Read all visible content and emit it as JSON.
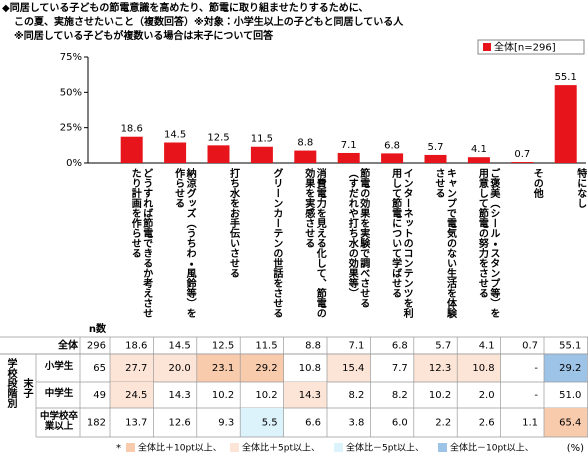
{
  "header": {
    "title_lines": [
      "◆同居している子どもの節電意識を高めたり、節電に取り組ませたりするために、",
      "この夏、実施させたいこと（複数回答）※対象：小学生以上の子どもと同居している人",
      "※同居している子どもが複数いる場合は末子について回答"
    ]
  },
  "chart_data": {
    "type": "bar",
    "legend": "全体[n=296]",
    "legend_position": "top-right",
    "color": "#e8141c",
    "categories": [
      "どうすれば節電できるか考えさせたり計画を作らせる",
      "納涼グッズ（うちわ・風鈴等）を作らせる",
      "打ち水をお手伝いさせる",
      "グリーンカーテンの世話をさせる",
      "消費電力を見える化して、節電の効果を実感させる",
      "節電の効果を実験で調べさせる（すだれや打ち水の効果等）",
      "インターネットのコンテンツを利用して節電について学ばせる",
      "キャンプで電気のない生活を体験させる",
      "ご褒美（シール・スタンプ等）を用意して節電の努力をさせる",
      "その他",
      "特になし"
    ],
    "values": [
      18.6,
      14.5,
      12.5,
      11.5,
      8.8,
      7.1,
      6.8,
      5.7,
      4.1,
      0.7,
      55.1
    ],
    "ylim": [
      0,
      75
    ],
    "yticks": [
      {
        "value": 0,
        "label": "0%"
      },
      {
        "value": 25,
        "label": "25%"
      },
      {
        "value": 50,
        "label": "50%"
      },
      {
        "value": 75,
        "label": "75%"
      }
    ]
  },
  "table": {
    "n_header": "n数",
    "group_label": "学校段階別",
    "subgroup_label": "末子",
    "rows": [
      {
        "label": "全体",
        "n": 296,
        "values": [
          "18.6",
          "14.5",
          "12.5",
          "11.5",
          "8.8",
          "7.1",
          "6.8",
          "5.7",
          "4.1",
          "0.7",
          "55.1"
        ],
        "cell_colors": [
          null,
          null,
          null,
          null,
          null,
          null,
          null,
          null,
          null,
          null,
          null
        ]
      },
      {
        "label": "小学生",
        "n": 65,
        "values": [
          "27.7",
          "20.0",
          "23.1",
          "29.2",
          "10.8",
          "15.4",
          "7.7",
          "12.3",
          "10.8",
          "-",
          "29.2"
        ],
        "cell_colors": [
          "#fce4d6",
          "#fce4d6",
          "#f8cbad",
          "#f8cbad",
          null,
          "#fce4d6",
          null,
          "#fce4d6",
          "#fce4d6",
          null,
          "#9dc3e6"
        ]
      },
      {
        "label": "中学生",
        "n": 49,
        "values": [
          "24.5",
          "14.3",
          "10.2",
          "10.2",
          "14.3",
          "8.2",
          "8.2",
          "10.2",
          "2.0",
          "-",
          "51.0"
        ],
        "cell_colors": [
          "#fce4d6",
          null,
          null,
          null,
          "#fce4d6",
          null,
          null,
          null,
          null,
          null,
          null
        ]
      },
      {
        "label": "中学校卒業以上",
        "n": 182,
        "values": [
          "13.7",
          "12.6",
          "9.3",
          "5.5",
          "6.6",
          "3.8",
          "6.0",
          "2.2",
          "2.6",
          "1.1",
          "65.4"
        ],
        "cell_colors": [
          null,
          null,
          null,
          "#ddf3fb",
          null,
          null,
          null,
          null,
          null,
          null,
          "#f8cbad"
        ]
      }
    ]
  },
  "footer": {
    "marker": "*",
    "unit": "(%)",
    "legend": [
      {
        "label": "全体比＋10pt以上、",
        "color": "#f8cbad"
      },
      {
        "label": "全体比＋5pt以上、",
        "color": "#fce4d6"
      },
      {
        "label": "全体比－5pt以上、",
        "color": "#ddf3fb"
      },
      {
        "label": "全体比－10pt以上、",
        "color": "#9dc3e6"
      }
    ]
  }
}
